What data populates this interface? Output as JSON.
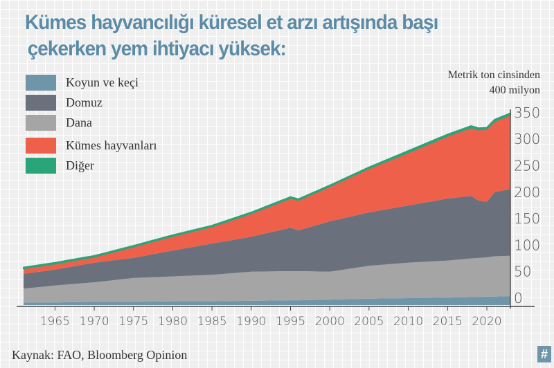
{
  "title_line1": "Kümes hayvancılığı küresel et arzı artışında başı",
  "title_line2": "çekerken yem ihtiyacı yüksek:",
  "unit_line1": "Metrik ton cinsinden",
  "unit_line2": "400 milyon",
  "source": "Kaynak: FAO, Bloomberg Opinion",
  "badge": "#",
  "chart_data": {
    "type": "area",
    "stacked": true,
    "xlabel": "",
    "ylabel": "",
    "ylim": [
      0,
      370
    ],
    "xlim": [
      1961,
      2023
    ],
    "grid": true,
    "legend": "top-left",
    "y_axis_side": "right",
    "x_ticks": [
      "1965",
      "1970",
      "1975",
      "1980",
      "1985",
      "1990",
      "1995",
      "2000",
      "2005",
      "2010",
      "2015",
      "2020"
    ],
    "y_ticks": [
      "0",
      "50",
      "100",
      "150",
      "200",
      "250",
      "300",
      "350"
    ],
    "x": [
      1961,
      1965,
      1970,
      1975,
      1980,
      1985,
      1990,
      1995,
      1996,
      2000,
      2005,
      2010,
      2015,
      2018,
      2019,
      2020,
      2021,
      2023
    ],
    "series": [
      {
        "name": "Koyun ve keçi",
        "color": "#6e95a8",
        "values": [
          5,
          5,
          6,
          6,
          7,
          7,
          8,
          9,
          9,
          10,
          12,
          13,
          14,
          15,
          15,
          16,
          16,
          17
        ]
      },
      {
        "name": "Dana",
        "color": "#a5a5a5",
        "values": [
          26,
          32,
          37,
          45,
          47,
          50,
          55,
          55,
          55,
          53,
          62,
          67,
          70,
          73,
          74,
          74,
          76,
          76
        ]
      },
      {
        "name": "Domuz",
        "color": "#6a717d",
        "values": [
          28,
          30,
          37,
          38,
          49,
          59,
          66,
          82,
          77,
          95,
          101,
          108,
          117,
          118,
          108,
          105,
          121,
          126
        ]
      },
      {
        "name": "Kümes hayvanları",
        "color": "#ef604b",
        "values": [
          10,
          11,
          11,
          21,
          27,
          32,
          44,
          56,
          57,
          66,
          83,
          100,
          118,
          129,
          134,
          137,
          134,
          140
        ]
      },
      {
        "name": "Diğer",
        "color": "#2aa57a",
        "values": [
          2,
          2,
          2,
          2,
          2,
          2,
          2,
          2,
          2,
          2,
          2,
          3,
          3,
          3,
          3,
          3,
          3,
          3
        ]
      }
    ],
    "legend_order": [
      "Koyun ve keçi",
      "Domuz",
      "Dana",
      "Kümes hayvanları",
      "Diğer"
    ]
  }
}
